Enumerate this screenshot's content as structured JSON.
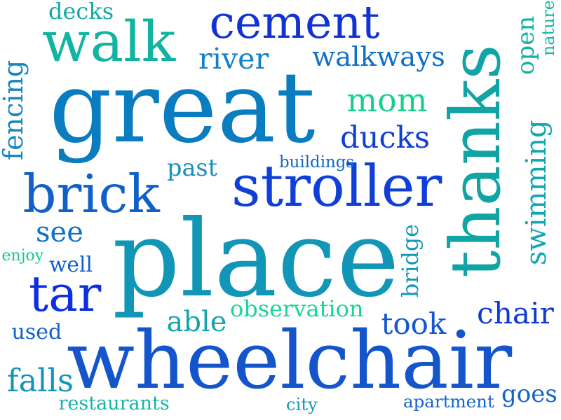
{
  "words": [
    {
      "text": "great",
      "color": "#0a7cc0"
    },
    {
      "text": "place",
      "color": "#1296b8"
    },
    {
      "text": "wheelchair",
      "color": "#1455cc"
    },
    {
      "text": "thanks",
      "color": "#10a4a4"
    },
    {
      "text": "stroller",
      "color": "#0f3fd8"
    },
    {
      "text": "cement",
      "color": "#1232d6"
    },
    {
      "text": "walk",
      "color": "#10b4a0"
    },
    {
      "text": "brick",
      "color": "#1060c8"
    },
    {
      "text": "tar",
      "color": "#0c2fe0"
    },
    {
      "text": "walkways",
      "color": "#1270c4"
    },
    {
      "text": "river",
      "color": "#1580c2"
    },
    {
      "text": "decks",
      "color": "#14aaa2"
    },
    {
      "text": "open",
      "color": "#12b0a6"
    },
    {
      "text": "nature",
      "color": "#14b8a0"
    },
    {
      "text": "mom",
      "color": "#18d08e"
    },
    {
      "text": "ducks",
      "color": "#1040d2"
    },
    {
      "text": "fencing",
      "color": "#1486c0"
    },
    {
      "text": "buildings",
      "color": "#1466c6"
    },
    {
      "text": "past",
      "color": "#1690bc"
    },
    {
      "text": "swimming",
      "color": "#10a8b0"
    },
    {
      "text": "see",
      "color": "#1070c8"
    },
    {
      "text": "enjoy",
      "color": "#18c496"
    },
    {
      "text": "well",
      "color": "#1060cc"
    },
    {
      "text": "bridge",
      "color": "#1698b8"
    },
    {
      "text": "observation",
      "color": "#18d49a"
    },
    {
      "text": "able",
      "color": "#12a6a8"
    },
    {
      "text": "chair",
      "color": "#0f38d6"
    },
    {
      "text": "took",
      "color": "#1258cc"
    },
    {
      "text": "used",
      "color": "#1462c8"
    },
    {
      "text": "falls",
      "color": "#1494ba"
    },
    {
      "text": "restaurants",
      "color": "#14b4a4"
    },
    {
      "text": "city",
      "color": "#1696c0"
    },
    {
      "text": "apartment",
      "color": "#1464c8"
    },
    {
      "text": "goes",
      "color": "#1464c8"
    }
  ]
}
